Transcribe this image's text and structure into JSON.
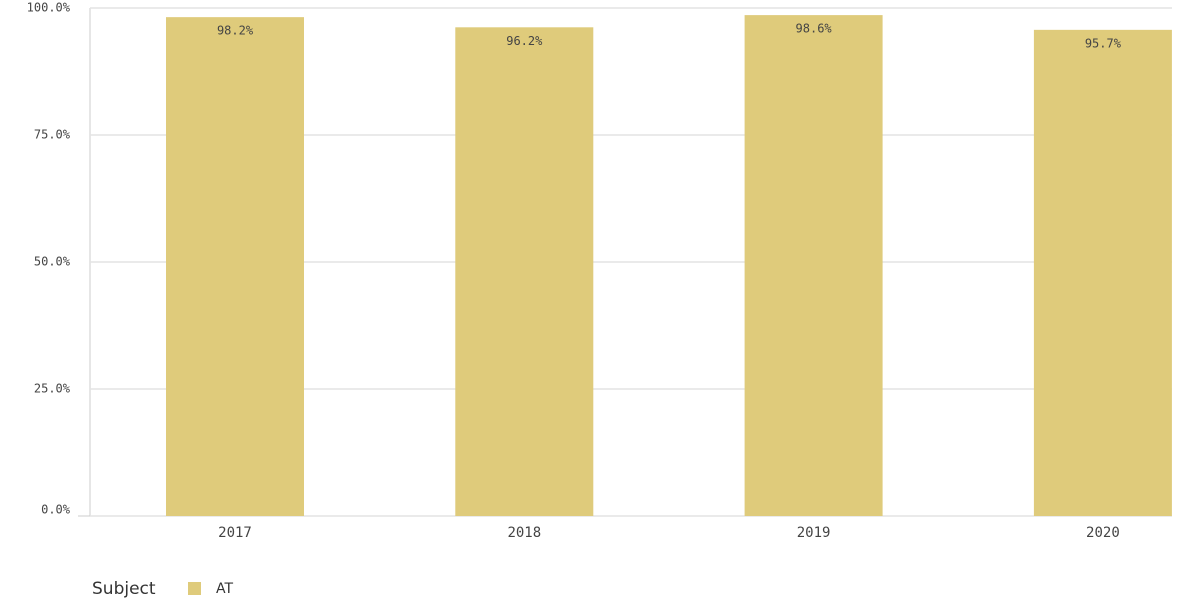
{
  "chart_data": {
    "type": "bar",
    "categories": [
      "2017",
      "2018",
      "2019",
      "2020"
    ],
    "series": [
      {
        "name": "AT",
        "color": "#dfcb7b",
        "values": [
          98.2,
          96.2,
          98.6,
          95.7
        ],
        "value_labels": [
          "98.2%",
          "96.2%",
          "98.6%",
          "95.7%"
        ]
      }
    ],
    "legend_title": "Subject",
    "ylim": [
      0,
      100
    ],
    "yticks": [
      {
        "value": 0,
        "label": "0.0%"
      },
      {
        "value": 25,
        "label": "25.0%"
      },
      {
        "value": 50,
        "label": "50.0%"
      },
      {
        "value": 75,
        "label": "75.0%"
      },
      {
        "value": 100,
        "label": "100.0%"
      }
    ],
    "grid": true
  }
}
